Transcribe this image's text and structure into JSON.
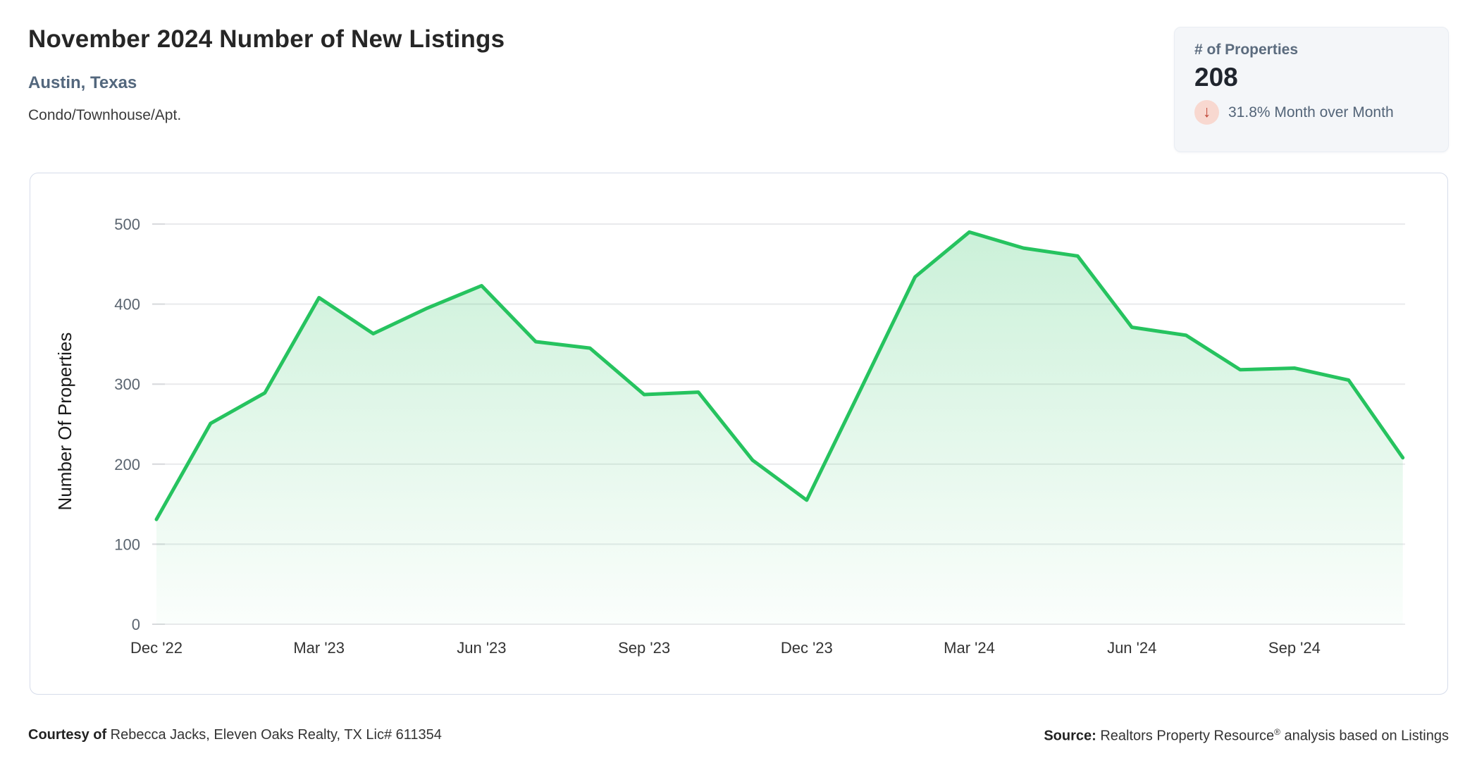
{
  "header": {
    "title": "November 2024 Number of New Listings",
    "subtitle": "Austin, Texas",
    "category": "Condo/Townhouse/Apt."
  },
  "stat_card": {
    "label": "# of Properties",
    "value": "208",
    "arrow_glyph": "↓",
    "direction": "down",
    "change": "31.8% Month over Month",
    "badge_bg": "#f8d8d0",
    "arrow_color": "#c04637"
  },
  "chart_data": {
    "type": "area",
    "title": "November 2024 Number of New Listings",
    "ylabel": "Number Of Properties",
    "xlabel": "",
    "grid": true,
    "legend": "none",
    "ylim": [
      0,
      500
    ],
    "yticks": [
      0,
      100,
      200,
      300,
      400,
      500
    ],
    "x": [
      "Dec '22",
      "Jan '23",
      "Feb '23",
      "Mar '23",
      "Apr '23",
      "May '23",
      "Jun '23",
      "Jul '23",
      "Aug '23",
      "Sep '23",
      "Oct '23",
      "Nov '23",
      "Dec '23",
      "Jan '24",
      "Feb '24",
      "Mar '24",
      "Apr '24",
      "May '24",
      "Jun '24",
      "Jul '24",
      "Aug '24",
      "Sep '24",
      "Oct '24",
      "Nov '24"
    ],
    "values": [
      131,
      251,
      289,
      408,
      363,
      395,
      423,
      353,
      345,
      287,
      290,
      205,
      155,
      294,
      434,
      490,
      470,
      460,
      371,
      361,
      318,
      320,
      305,
      208
    ],
    "x_tick_labels": [
      "Dec '22",
      "Mar '23",
      "Jun '23",
      "Sep '23",
      "Dec '23",
      "Mar '24",
      "Jun '24",
      "Sep '24"
    ],
    "x_tick_indices": [
      0,
      3,
      6,
      9,
      12,
      15,
      18,
      21
    ],
    "line_color": "#26c35f",
    "fill_top": "rgba(38,195,95,0.24)",
    "fill_bottom": "rgba(38,195,95,0.02)",
    "grid_color": "#e9eaec",
    "tick_label_color": "#5b6570",
    "x_label_color": "#333333"
  },
  "footer": {
    "courtesy_bold": "Courtesy of",
    "courtesy_rest": " Rebecca Jacks, Eleven Oaks Realty, TX Lic# 611354",
    "source_bold": "Source:",
    "source_pre": " Realtors Property Resource",
    "source_sup": "®",
    "source_post": " analysis based on Listings"
  }
}
